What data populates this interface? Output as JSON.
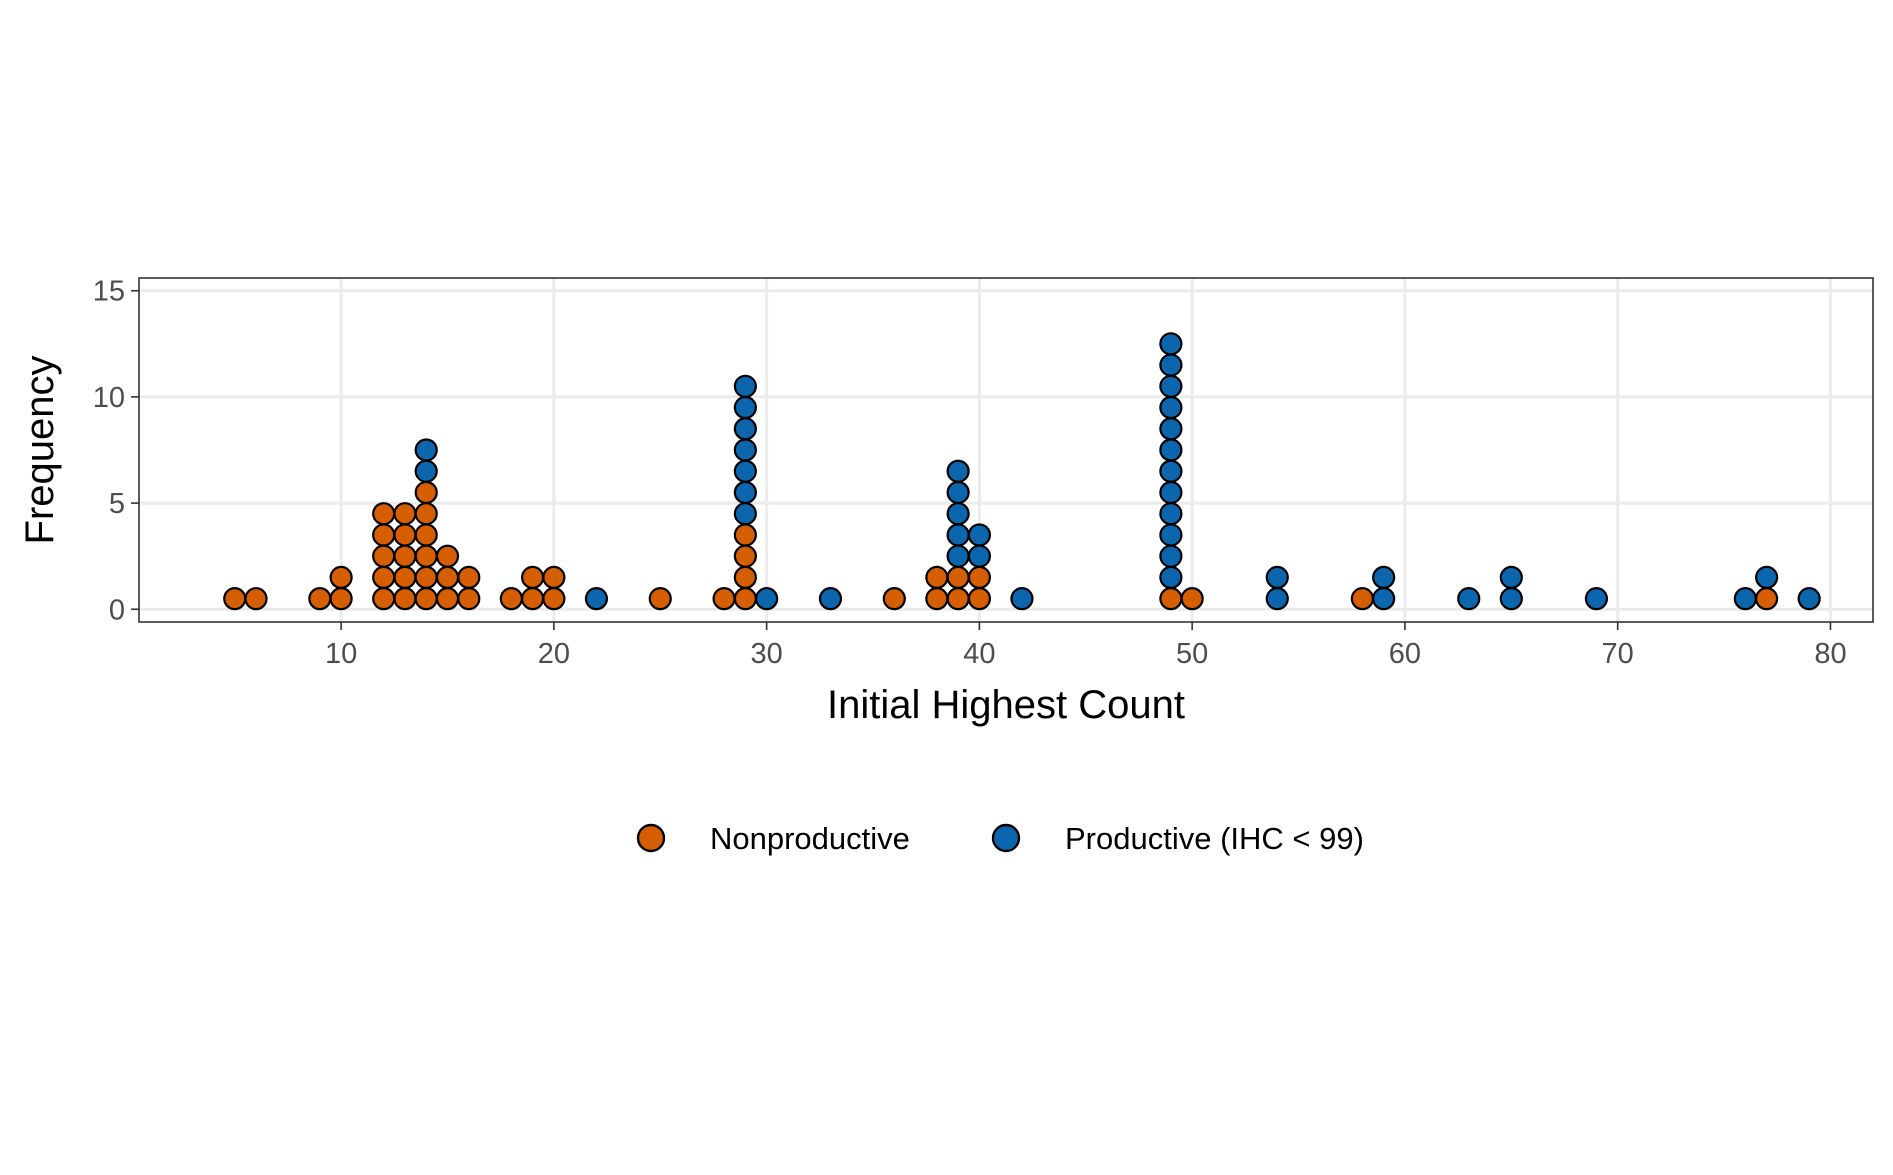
{
  "chart_data": {
    "type": "dotplot",
    "title": "",
    "xlabel": "Initial Highest Count",
    "ylabel": "Frequency",
    "xlim": [
      0.5,
      82
    ],
    "ylim": [
      -0.6,
      15.6
    ],
    "x_ticks": [
      10,
      20,
      30,
      40,
      50,
      60,
      70,
      80
    ],
    "y_ticks": [
      0,
      5,
      10,
      15
    ],
    "grid": true,
    "legend_position": "bottom",
    "series": [
      {
        "name": "Nonproductive",
        "color": "#d55e00",
        "points": [
          [
            5,
            1
          ],
          [
            6,
            1
          ],
          [
            9,
            1
          ],
          [
            10,
            2
          ],
          [
            12,
            5
          ],
          [
            13,
            5
          ],
          [
            14,
            6
          ],
          [
            15,
            3
          ],
          [
            16,
            2
          ],
          [
            18,
            1
          ],
          [
            19,
            2
          ],
          [
            20,
            2
          ],
          [
            25,
            1
          ],
          [
            28,
            1
          ],
          [
            29,
            4
          ],
          [
            36,
            1
          ],
          [
            38,
            2
          ],
          [
            39,
            2
          ],
          [
            40,
            2
          ],
          [
            49,
            1
          ],
          [
            50,
            1
          ],
          [
            58,
            1
          ],
          [
            77,
            1
          ]
        ]
      },
      {
        "name": "Productive (IHC < 99)",
        "color": "#0c66ae",
        "points": [
          [
            14,
            2
          ],
          [
            22,
            1
          ],
          [
            29,
            7
          ],
          [
            30,
            1
          ],
          [
            33,
            1
          ],
          [
            39,
            5
          ],
          [
            40,
            2
          ],
          [
            42,
            1
          ],
          [
            49,
            12
          ],
          [
            54,
            2
          ],
          [
            59,
            2
          ],
          [
            63,
            1
          ],
          [
            65,
            2
          ],
          [
            69,
            1
          ],
          [
            76,
            1
          ],
          [
            77,
            1
          ],
          [
            79,
            1
          ]
        ]
      }
    ]
  }
}
